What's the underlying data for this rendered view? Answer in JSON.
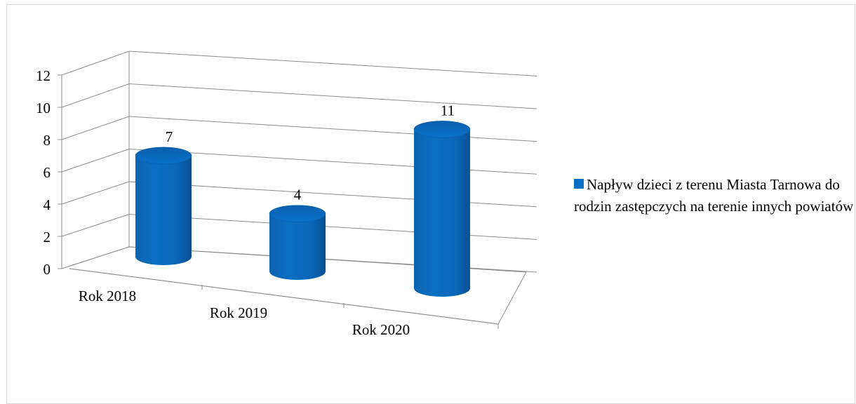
{
  "chart_data": {
    "type": "bar",
    "style": "3d-cylinder",
    "categories": [
      "Rok 2018",
      "Rok 2019",
      "Rok 2020"
    ],
    "series": [
      {
        "name": "Napływ dzieci z terenu Miasta Tarnowa do rodzin zastępczych na terenie innych powiatów",
        "values": [
          7,
          4,
          11
        ],
        "color": "#0a6fc2"
      }
    ],
    "ylim": [
      0,
      12
    ],
    "yticks": [
      0,
      2,
      4,
      6,
      8,
      10,
      12
    ],
    "grid": true,
    "legend": "right",
    "data_labels": true
  }
}
